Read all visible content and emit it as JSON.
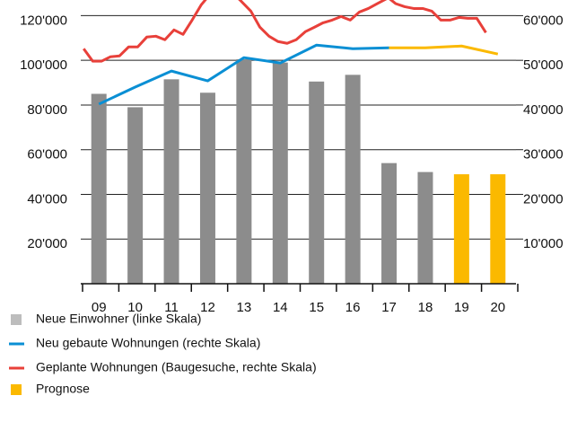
{
  "chart_data": {
    "type": "bar",
    "categories": [
      "09",
      "10",
      "11",
      "12",
      "13",
      "14",
      "15",
      "16",
      "17",
      "18",
      "19",
      "20"
    ],
    "xlim": [
      -0.5,
      11.5
    ],
    "ylim": [
      0,
      127000
    ],
    "yticks": [
      {
        "value": 20000,
        "label": "20'000"
      },
      {
        "value": 40000,
        "label": "40'000"
      },
      {
        "value": 60000,
        "label": "60'000"
      },
      {
        "value": 80000,
        "label": "80'000"
      },
      {
        "value": 100000,
        "label": "100'000"
      },
      {
        "value": 120000,
        "label": "120'000"
      }
    ],
    "y2lim": [
      0,
      63500
    ],
    "y2ticks": [
      {
        "value": 10000,
        "label": "10'000"
      },
      {
        "value": 20000,
        "label": "20'000"
      },
      {
        "value": 30000,
        "label": "30'000"
      },
      {
        "value": 40000,
        "label": "40'000"
      },
      {
        "value": 50000,
        "label": "50'000"
      },
      {
        "value": 60000,
        "label": "60'000"
      }
    ],
    "grid": true,
    "series": [
      {
        "name": "Neue Einwohner (linke Skala)",
        "type": "bar",
        "color": "#8c8c8c",
        "colors": [
          "#8c8c8c",
          "#8c8c8c",
          "#8c8c8c",
          "#8c8c8c",
          "#8c8c8c",
          "#8c8c8c",
          "#8c8c8c",
          "#8c8c8c",
          "#8c8c8c",
          "#8c8c8c",
          "#fbb900",
          "#fbb900"
        ],
        "values": [
          85000,
          79000,
          91500,
          85500,
          100500,
          99000,
          90500,
          93500,
          54000,
          50000,
          49000,
          49000
        ]
      },
      {
        "name": "Neu gebaute Wohnungen (rechte Skala)",
        "type": "line",
        "axis": "y2",
        "color": "#0a8fd4",
        "values": [
          40200,
          44000,
          47600,
          45400,
          50600,
          49400,
          53400,
          52600,
          52800,
          null,
          null,
          null
        ]
      },
      {
        "name": "Geplante Wohnungen (Baugesuche, rechte Skala)",
        "type": "line",
        "axis": "y2",
        "color": "#e8403a",
        "x": [
          -0.42,
          -0.17,
          0.07,
          0.32,
          0.57,
          0.82,
          1.07,
          1.32,
          1.57,
          1.82,
          2.07,
          2.32,
          2.57,
          2.82,
          3.19,
          3.57,
          3.89,
          4.19,
          4.44,
          4.69,
          4.94,
          5.19,
          5.44,
          5.69,
          5.94,
          6.18,
          6.43,
          6.68,
          6.93,
          7.18,
          7.43,
          7.68,
          7.98,
          8.18,
          8.43,
          8.68,
          8.93,
          9.18,
          9.43,
          9.68,
          9.93,
          10.17,
          10.42,
          10.67
        ],
        "values": [
          52600,
          49800,
          49800,
          50800,
          51000,
          53000,
          53000,
          55200,
          55400,
          54600,
          56800,
          55800,
          59000,
          62400,
          66000,
          66000,
          63500,
          61000,
          57400,
          55400,
          54200,
          53800,
          54600,
          56400,
          57400,
          58400,
          59000,
          59800,
          59000,
          60800,
          61600,
          62700,
          64000,
          62700,
          62000,
          61600,
          61600,
          61000,
          59000,
          59000,
          59600,
          59400,
          59400,
          56200
        ]
      },
      {
        "type": "line",
        "axis": "y2",
        "color": "#fbb900",
        "values": [
          null,
          null,
          null,
          null,
          null,
          null,
          null,
          null,
          52800,
          52800,
          53200,
          51400
        ]
      }
    ],
    "forecast": {
      "name": "Prognose",
      "color": "#fbb900"
    }
  }
}
